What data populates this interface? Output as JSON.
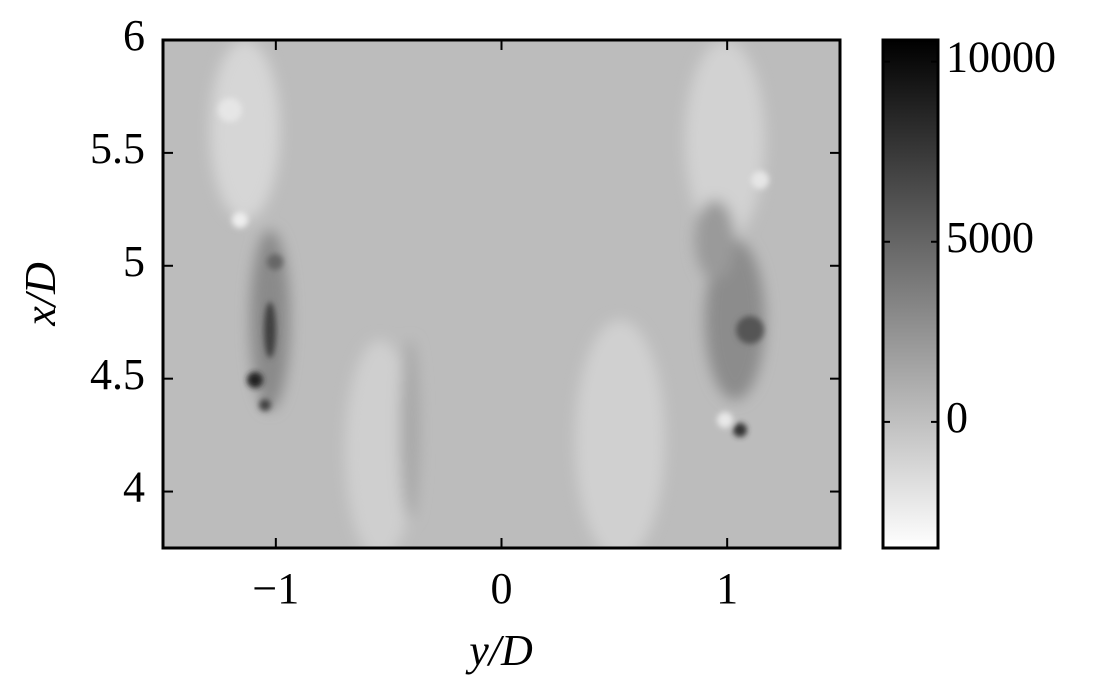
{
  "chart_data": {
    "type": "heatmap",
    "xlabel": "y/D",
    "ylabel": "x/D",
    "xlim": [
      -1.5,
      1.5
    ],
    "xticks": [
      {
        "value": -1,
        "label": "−1"
      },
      0,
      1
    ],
    "ylim": [
      3.75,
      6
    ],
    "yticks": [
      4,
      4.5,
      5,
      5.5,
      6
    ],
    "clim": [
      -3500,
      10600
    ],
    "cticks": [
      0,
      5000,
      10000
    ],
    "colormap": "gray"
  }
}
